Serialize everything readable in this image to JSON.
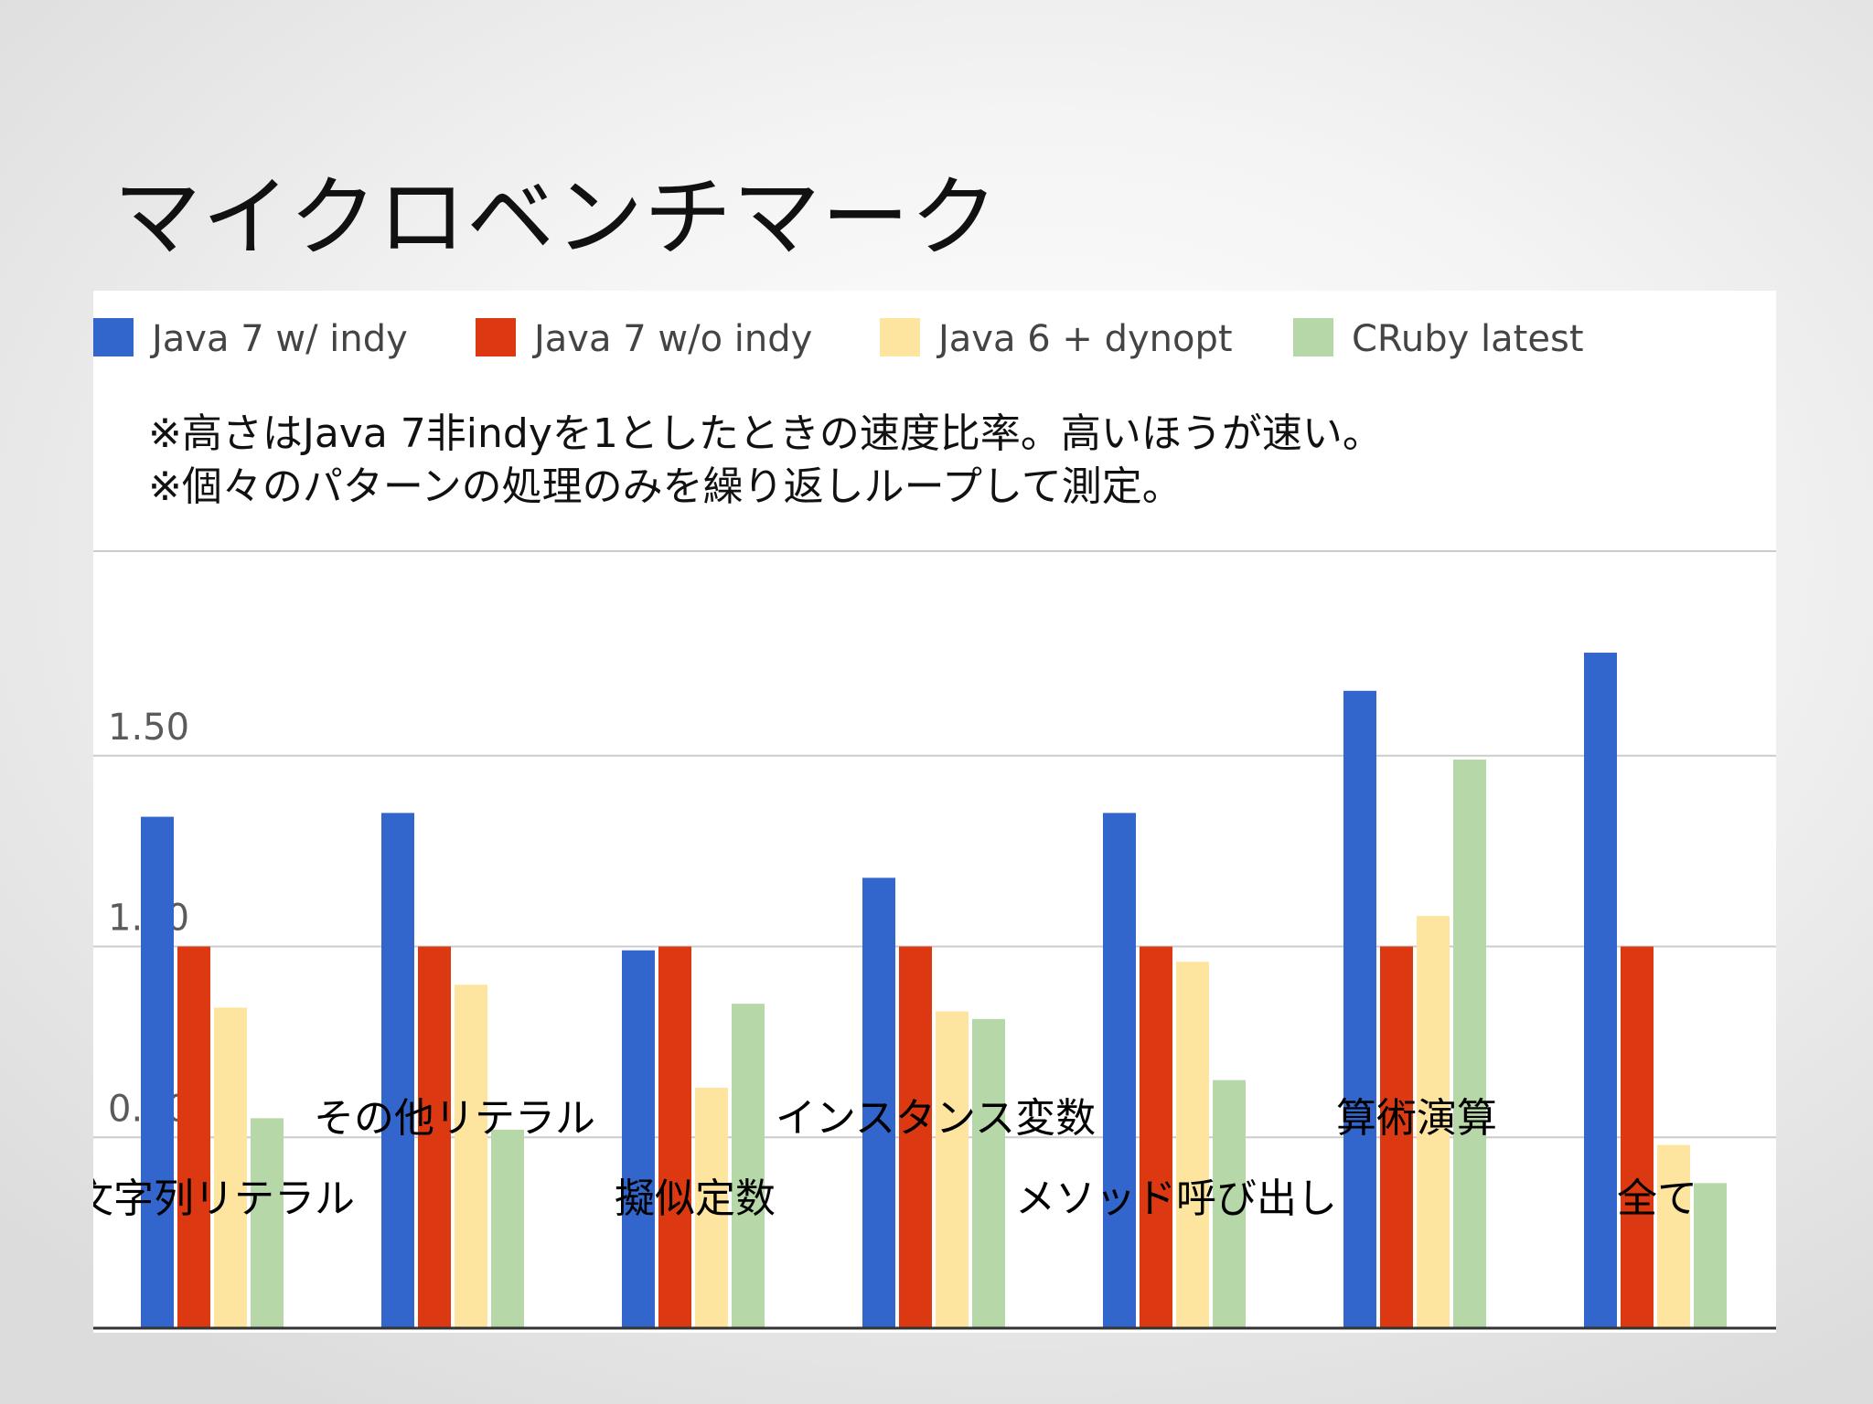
{
  "slide": {
    "title": "マイクロベンチマーク"
  },
  "notes": [
    "※高さはJava 7非indyを1としたときの速度比率。高いほうが速い。",
    "※個々のパターンの処理のみを繰り返しループして測定。"
  ],
  "chart_data": {
    "type": "bar",
    "title": "",
    "xlabel": "",
    "ylabel": "",
    "ylim": [
      0,
      2.0
    ],
    "yticks": [
      {
        "value": 0.5,
        "label": "0.50"
      },
      {
        "value": 1.0,
        "label": "1.00"
      },
      {
        "value": 1.5,
        "label": "1.50"
      }
    ],
    "grid": true,
    "legend_position": "top",
    "categories": [
      "文字列リテラル",
      "その他リテラル",
      "擬似定数",
      "インスタンス変数",
      "メソッド呼び出し",
      "算術演算",
      "全て"
    ],
    "category_label_rows": [
      1,
      0,
      1,
      0,
      1,
      0,
      1
    ],
    "series": [
      {
        "name": "Java 7 w/ indy",
        "color": "#3366cc",
        "values": [
          1.34,
          1.35,
          0.99,
          1.18,
          1.35,
          1.67,
          1.77
        ]
      },
      {
        "name": "Java 7 w/o indy",
        "color": "#dc3912",
        "values": [
          1.0,
          1.0,
          1.0,
          1.0,
          1.0,
          1.0,
          1.0
        ]
      },
      {
        "name": "Java 6 + dynopt",
        "color": "#fde5a0",
        "values": [
          0.84,
          0.9,
          0.63,
          0.83,
          0.96,
          1.08,
          0.48
        ]
      },
      {
        "name": "CRuby latest",
        "color": "#b6d7a8",
        "values": [
          0.55,
          0.52,
          0.85,
          0.81,
          0.65,
          1.49,
          0.38
        ]
      }
    ]
  }
}
